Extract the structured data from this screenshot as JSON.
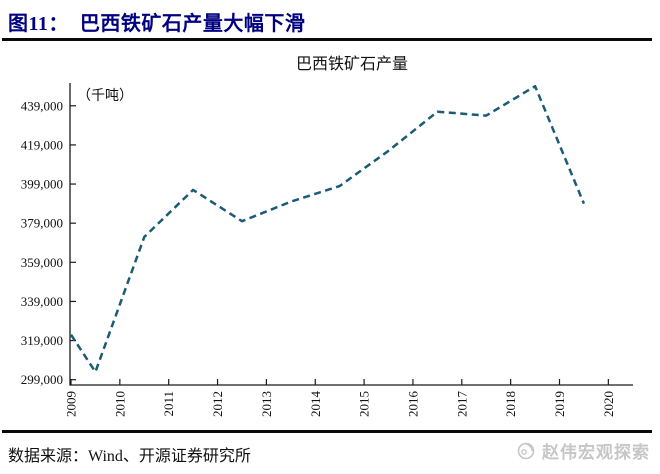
{
  "header": {
    "title": "图11：  巴西铁矿石产量大幅下滑"
  },
  "footer": {
    "source": "数据来源：Wind、开源证券研究所",
    "watermark": "赵伟宏观探索"
  },
  "colors": {
    "accent_navy": "#000080",
    "line_teal": "#1a5b77",
    "axis_black": "#1a1a1a",
    "watermark_gray": "#c6c6c6"
  },
  "chart_data": {
    "type": "line",
    "title": "巴西铁矿石产量",
    "unit_label": "（千吨）",
    "xlabel": "",
    "ylabel": "",
    "grid": false,
    "legend": "none",
    "x_axis": {
      "ticks": [
        2009,
        2010,
        2011,
        2012,
        2013,
        2014,
        2015,
        2016,
        2017,
        2018,
        2019,
        2020
      ],
      "tick_labels": [
        "2009",
        "2010",
        "2011",
        "2012",
        "2013",
        "2014",
        "2015",
        "2016",
        "2017",
        "2018",
        "2019",
        "2020"
      ]
    },
    "y_axis": {
      "ticks": [
        299000,
        319000,
        339000,
        359000,
        379000,
        399000,
        419000,
        439000
      ],
      "tick_labels": [
        "299,000",
        "319,000",
        "339,000",
        "359,000",
        "379,000",
        "399,000",
        "419,000",
        "439,000"
      ],
      "range": [
        299000,
        452000
      ]
    },
    "series": [
      {
        "name": "巴西铁矿石产量",
        "style": "dashed",
        "years": [
          2009,
          2010,
          2011,
          2012,
          2013,
          2014,
          2015,
          2016,
          2017,
          2018,
          2019
        ],
        "values_kt": [
          303000,
          372000,
          396000,
          380000,
          390000,
          398000,
          416000,
          436000,
          434000,
          449000,
          389000
        ],
        "point_axis_offset_years": 0.5,
        "lead_in_clip": {
          "axis_year": 2009.0,
          "value_kt": 322000
        }
      }
    ]
  }
}
